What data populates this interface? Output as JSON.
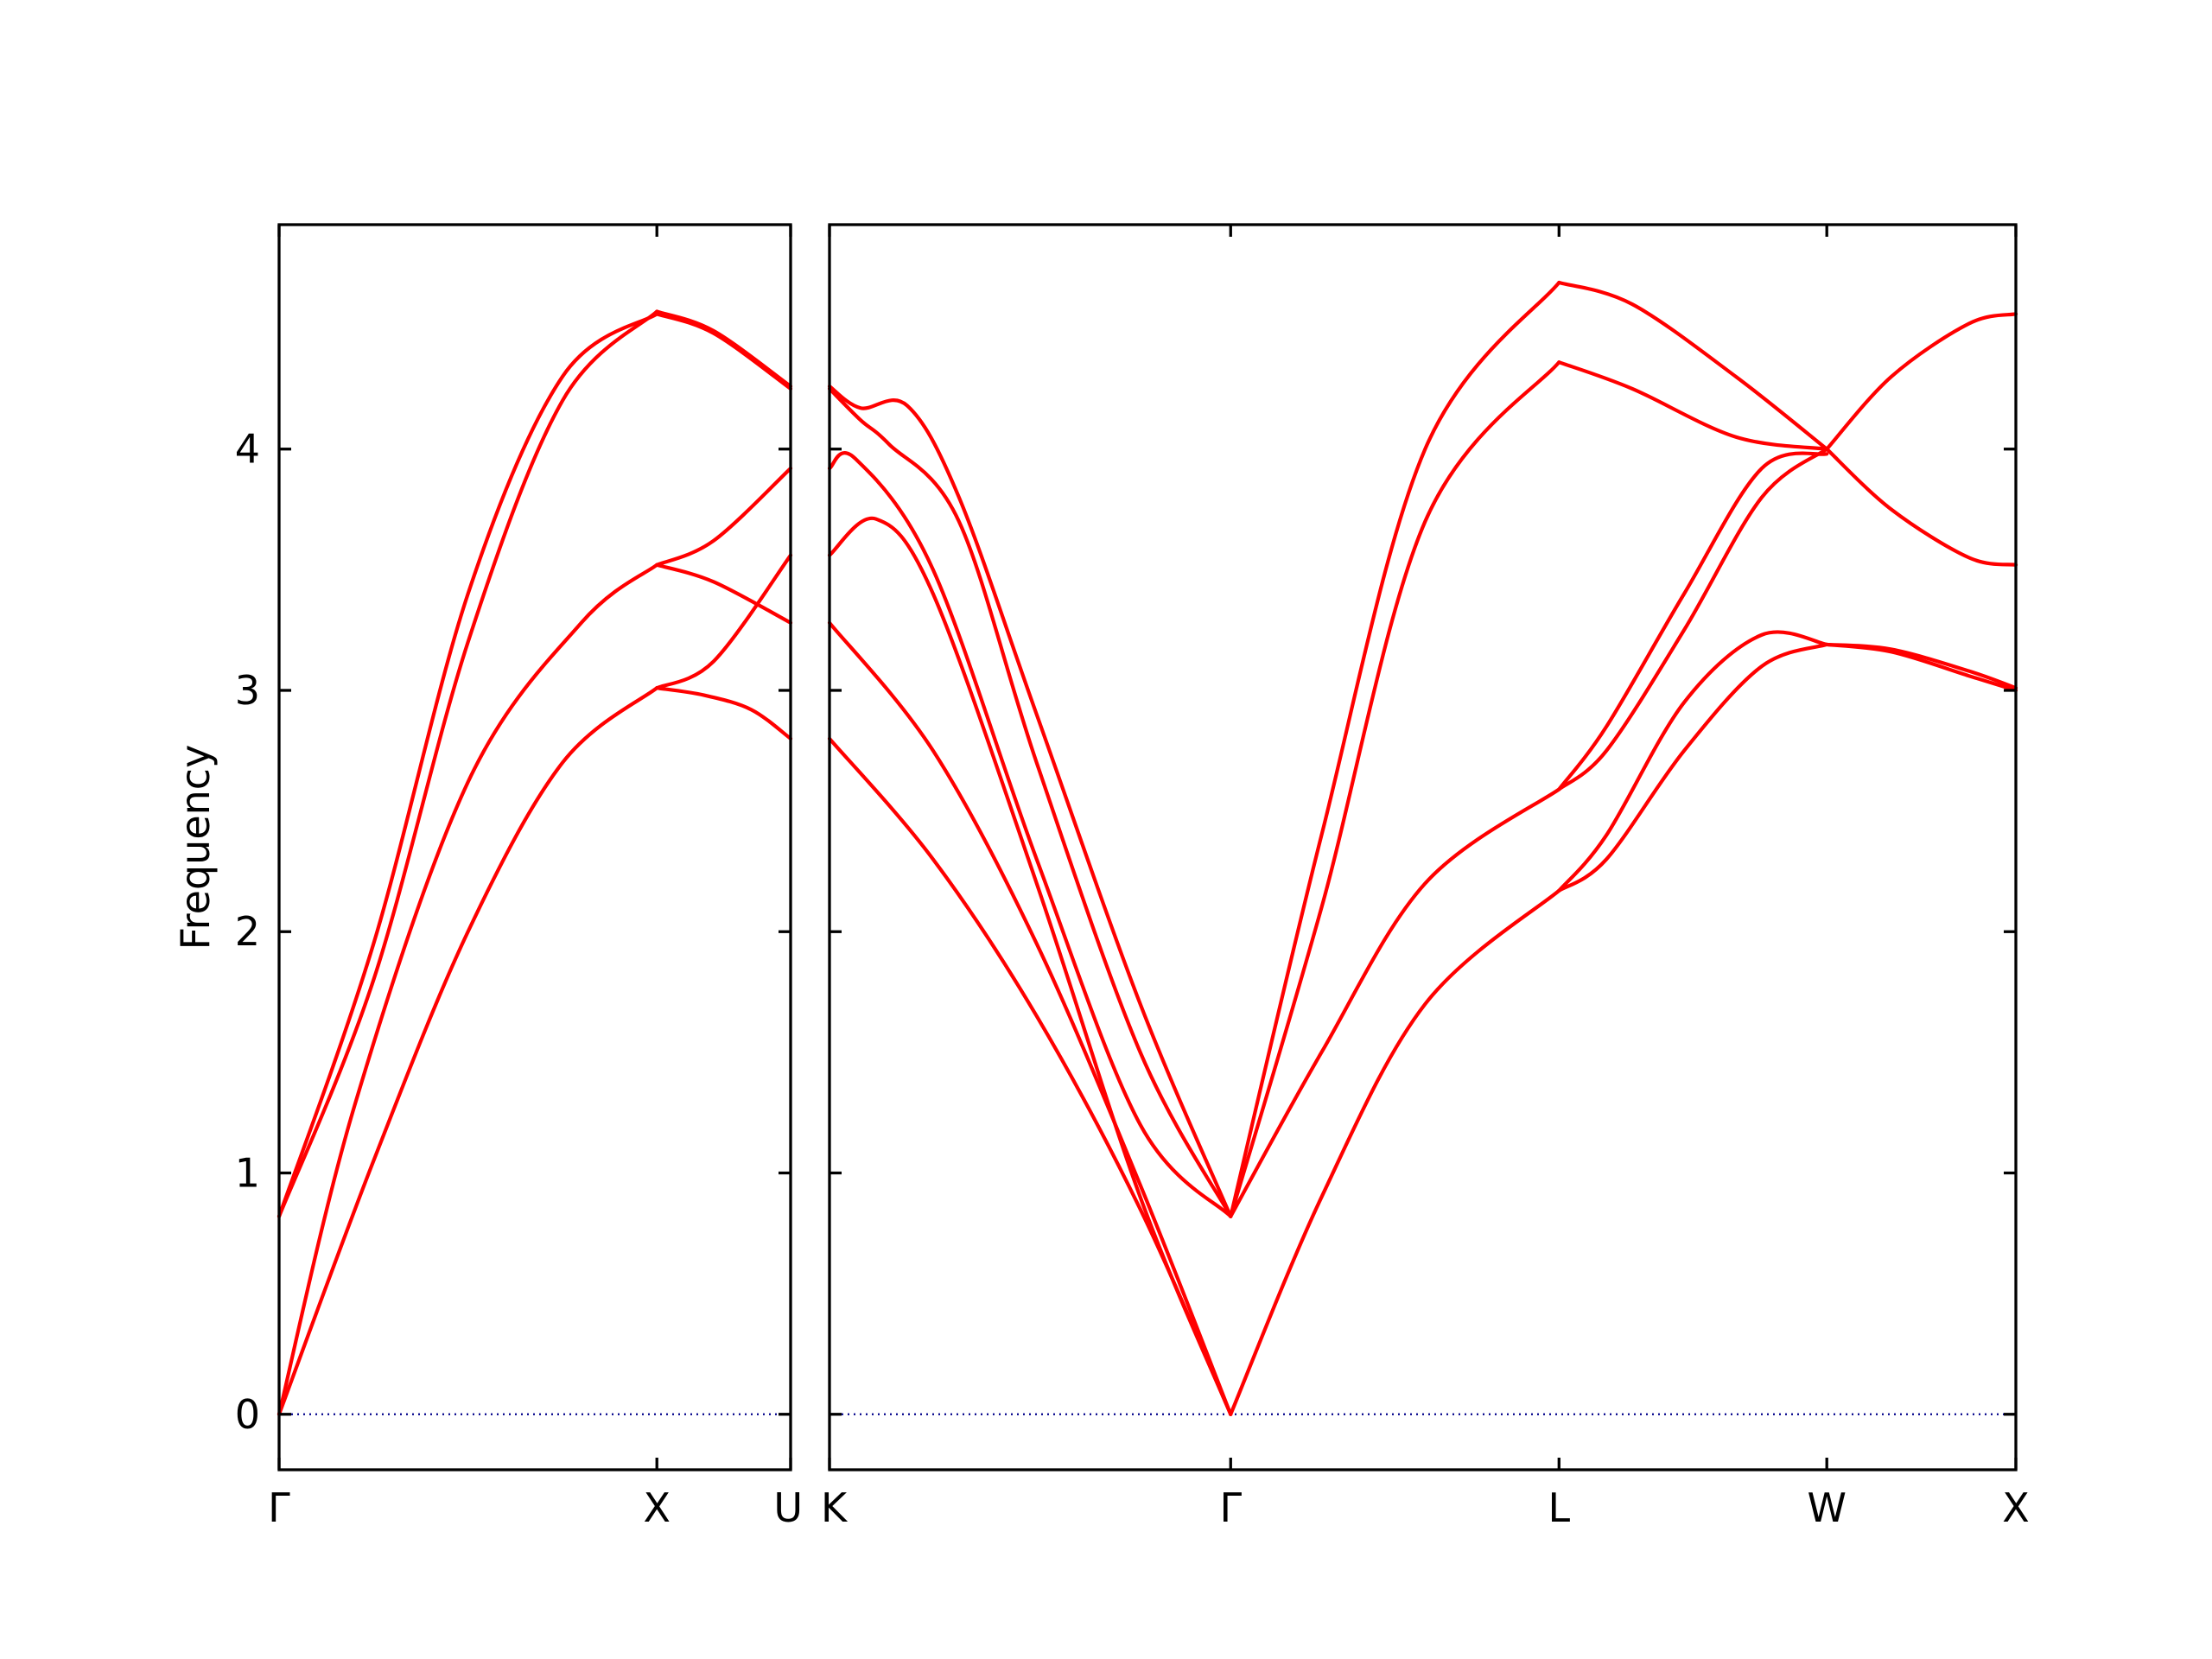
{
  "chart_data": {
    "type": "line",
    "ylabel": "Frequency",
    "ylim": [
      -0.23,
      4.93
    ],
    "yticks": [
      0,
      1,
      2,
      3,
      4
    ],
    "grid": false,
    "band_color": "#ff0000",
    "zero_line_color": "#00008b",
    "panels": [
      {
        "xlim": [
          0,
          1.354
        ],
        "labels": [
          {
            "x": 0,
            "text": "Γ"
          },
          {
            "x": 1,
            "text": "X"
          },
          {
            "x": 1.354,
            "text": "U"
          }
        ],
        "bands": [
          {
            "x": [
              0,
              0.25,
              0.5,
              0.75,
              1
            ],
            "y": [
              0,
              1.05,
              2.0,
              2.7,
              3.01
            ]
          },
          {
            "x": [
              1,
              1.125,
              1.25,
              1.354
            ],
            "y": [
              3.01,
              2.98,
              2.92,
              2.8
            ]
          },
          {
            "x": [
              0,
              0.2,
              0.5,
              0.8,
              1
            ],
            "y": [
              0,
              1.28,
              2.62,
              3.28,
              3.52
            ]
          },
          {
            "x": [
              1,
              1.15,
              1.354
            ],
            "y": [
              3.52,
              3.45,
              3.28
            ]
          },
          {
            "x": [
              1,
              1.15,
              1.354
            ],
            "y": [
              3.01,
              3.12,
              3.56
            ]
          },
          {
            "x": [
              1,
              1.15,
              1.354
            ],
            "y": [
              3.52,
              3.62,
              3.92
            ]
          },
          {
            "x": [
              0,
              0.25,
              0.5,
              0.75,
              1
            ],
            "y": [
              0.82,
              1.8,
              3.2,
              4.2,
              4.57
            ]
          },
          {
            "x": [
              0,
              0.25,
              0.5,
              0.75,
              1
            ],
            "y": [
              0.82,
              1.95,
              3.4,
              4.3,
              4.56
            ]
          },
          {
            "x": [
              1,
              1.15,
              1.354
            ],
            "y": [
              4.56,
              4.48,
              4.25
            ]
          },
          {
            "x": [
              1,
              1.15,
              1.354
            ],
            "y": [
              4.57,
              4.49,
              4.26
            ]
          }
        ]
      },
      {
        "xlim": [
          0,
          4.581
        ],
        "labels": [
          {
            "x": 0,
            "text": "K"
          },
          {
            "x": 1.549,
            "text": "Γ"
          },
          {
            "x": 2.817,
            "text": "L"
          },
          {
            "x": 3.851,
            "text": "W"
          },
          {
            "x": 4.581,
            "text": "X"
          }
        ],
        "bands": [
          {
            "x": [
              0,
              0.4,
              0.8,
              1.2,
              1.549
            ],
            "y": [
              2.8,
              2.3,
              1.65,
              0.85,
              0
            ]
          },
          {
            "x": [
              0,
              0.4,
              0.8,
              1.2,
              1.549
            ],
            "y": [
              3.28,
              2.75,
              1.95,
              0.95,
              0
            ]
          },
          {
            "x": [
              0,
              0.18,
              0.4,
              0.8,
              1.2,
              1.549
            ],
            "y": [
              3.56,
              3.71,
              3.4,
              2.2,
              0.9,
              0
            ]
          },
          {
            "x": [
              0,
              0.1,
              0.4,
              0.8,
              1.2,
              1.549
            ],
            "y": [
              3.92,
              3.96,
              3.5,
              2.3,
              1.2,
              0.82
            ]
          },
          {
            "x": [
              0,
              0.12,
              0.23,
              0.5,
              0.8,
              1.2,
              1.549
            ],
            "y": [
              4.25,
              4.12,
              4.02,
              3.7,
              2.7,
              1.5,
              0.82
            ]
          },
          {
            "x": [
              0,
              0.12,
              0.3,
              0.5,
              0.8,
              1.2,
              1.549
            ],
            "y": [
              4.26,
              4.17,
              4.18,
              3.8,
              2.9,
              1.7,
              0.82
            ]
          },
          {
            "x": [
              1.549,
              1.9,
              2.3,
              2.817
            ],
            "y": [
              0,
              0.9,
              1.7,
              2.17
            ]
          },
          {
            "x": [
              1.549,
              1.9,
              2.3,
              2.817
            ],
            "y": [
              0.82,
              1.5,
              2.2,
              2.59
            ]
          },
          {
            "x": [
              1.549,
              1.9,
              2.3,
              2.817
            ],
            "y": [
              0.82,
              2.1,
              3.7,
              4.36
            ]
          },
          {
            "x": [
              1.549,
              1.9,
              2.3,
              2.817
            ],
            "y": [
              0.82,
              2.4,
              4.0,
              4.69
            ]
          },
          {
            "x": [
              2.817,
              3.1,
              3.5,
              3.851
            ],
            "y": [
              4.36,
              4.25,
              4.05,
              4.0
            ]
          },
          {
            "x": [
              2.817,
              3.1,
              3.5,
              3.851
            ],
            "y": [
              4.69,
              4.6,
              4.3,
              4.0
            ]
          },
          {
            "x": [
              2.817,
              3.0,
              3.3,
              3.6,
              3.851
            ],
            "y": [
              2.59,
              2.75,
              3.25,
              3.8,
              4.0
            ]
          },
          {
            "x": [
              2.817,
              3.0,
              3.3,
              3.6,
              3.851
            ],
            "y": [
              2.59,
              2.85,
              3.4,
              3.92,
              3.98
            ]
          },
          {
            "x": [
              2.817,
              3.0,
              3.3,
              3.6,
              3.851
            ],
            "y": [
              2.17,
              2.3,
              2.75,
              3.1,
              3.19
            ]
          },
          {
            "x": [
              2.817,
              3.0,
              3.3,
              3.6,
              3.851
            ],
            "y": [
              2.17,
              2.4,
              2.95,
              3.23,
              3.19
            ]
          },
          {
            "x": [
              3.851,
              4.1,
              4.4,
              4.581
            ],
            "y": [
              4.0,
              4.3,
              4.52,
              4.56
            ]
          },
          {
            "x": [
              3.851,
              4.1,
              4.4,
              4.581
            ],
            "y": [
              4.0,
              3.75,
              3.55,
              3.52
            ]
          },
          {
            "x": [
              3.851,
              4.1,
              4.4,
              4.581
            ],
            "y": [
              3.19,
              3.17,
              3.08,
              3.01
            ]
          },
          {
            "x": [
              3.851,
              4.1,
              4.4,
              4.581
            ],
            "y": [
              3.19,
              3.16,
              3.06,
              3.0
            ]
          }
        ]
      }
    ]
  }
}
